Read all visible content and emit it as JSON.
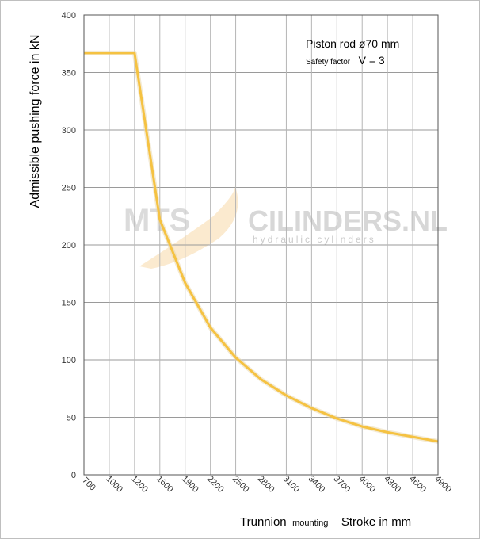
{
  "chart_data": {
    "type": "line",
    "ylabel": "Admissible pushing force in kN",
    "xlabel_parts": [
      "Trunnion",
      "mounting",
      "Stroke in mm"
    ],
    "y_ticks": [
      0,
      50,
      100,
      150,
      200,
      250,
      300,
      350,
      400
    ],
    "x_ticks": [
      "700",
      "1000",
      "1200",
      "1600",
      "1900",
      "2200",
      "2500",
      "2800",
      "3100",
      "3400",
      "3700",
      "4000",
      "4300",
      "4600",
      "4900"
    ],
    "ylim": [
      0,
      400
    ],
    "grid": "vertical",
    "series": [
      {
        "color": "#f5c242",
        "points": [
          {
            "x": "700",
            "y": 367
          },
          {
            "x": "1000",
            "y": 367
          },
          {
            "x": "1200",
            "y": 367
          },
          {
            "x": "1600",
            "y": 222
          },
          {
            "x": "1900",
            "y": 167
          },
          {
            "x": "2200",
            "y": 128
          },
          {
            "x": "2500",
            "y": 102
          },
          {
            "x": "2800",
            "y": 83
          },
          {
            "x": "3100",
            "y": 69
          },
          {
            "x": "3400",
            "y": 58
          },
          {
            "x": "3700",
            "y": 49
          },
          {
            "x": "4000",
            "y": 42
          },
          {
            "x": "4300",
            "y": 37
          },
          {
            "x": "4600",
            "y": 33
          },
          {
            "x": "4900",
            "y": 29
          }
        ]
      }
    ],
    "annotations": {
      "title_line1": "Piston rod ø70 mm",
      "line2_small": "Safety factor",
      "line2_big": "V = 3"
    },
    "watermark": {
      "left": "MTS",
      "right": "CILINDERS.NL",
      "sub": "hydraulic cylinders"
    }
  }
}
